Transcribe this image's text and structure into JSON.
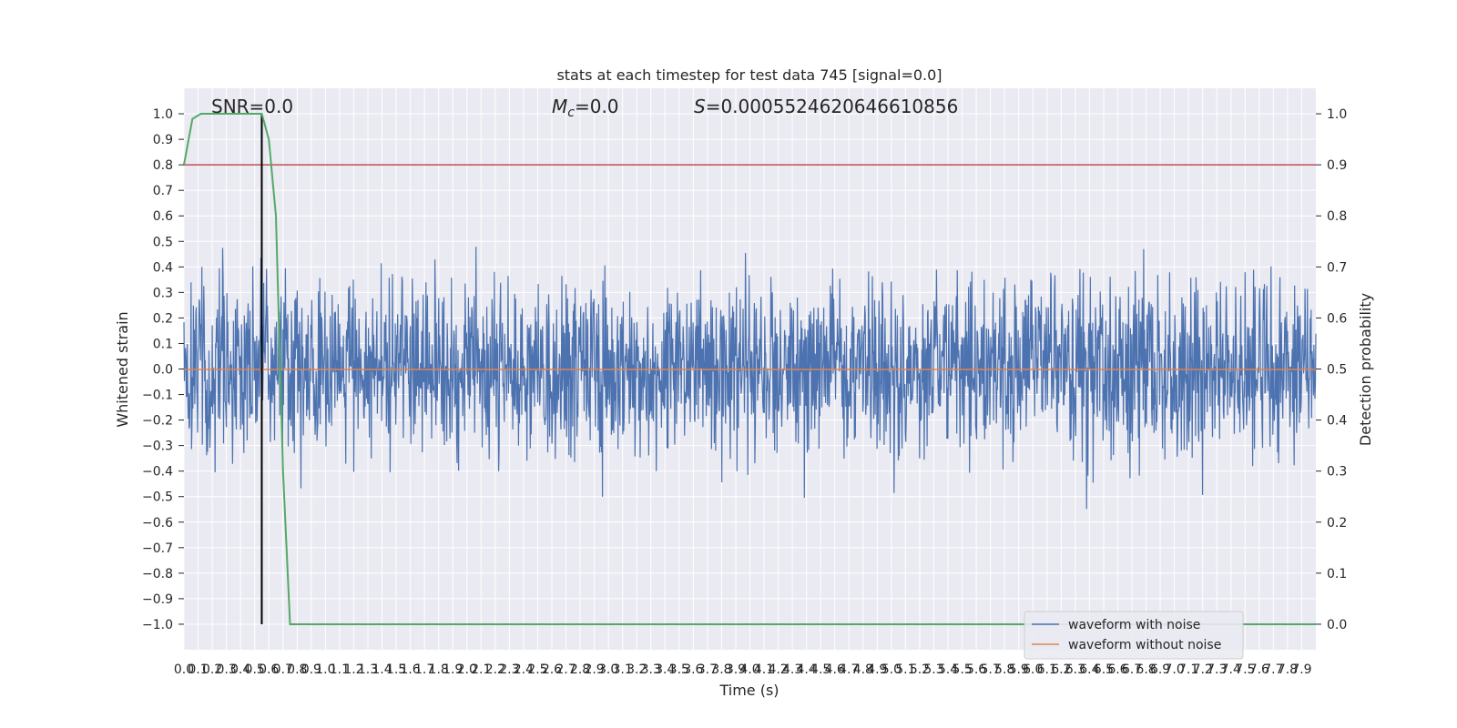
{
  "chart_data": {
    "type": "line",
    "title": "stats at each timestep for test data 745 [signal=0.0]",
    "xlabel": "Time (s)",
    "ylabel_left": "Whitened strain",
    "ylabel_right": "Detection probability",
    "xlim": [
      0.0,
      8.0
    ],
    "ylim_left": [
      -1.1,
      1.1
    ],
    "ylim_right": [
      -0.05,
      1.05
    ],
    "x_ticks": [
      "0.0",
      "0.1",
      "0.2",
      "0.3",
      "0.4",
      "0.5",
      "0.6",
      "0.7",
      "0.8",
      "0.9",
      "1.0",
      "1.1",
      "1.2",
      "1.3",
      "1.4",
      "1.5",
      "1.6",
      "1.7",
      "1.8",
      "1.9",
      "2.0",
      "2.1",
      "2.2",
      "2.3",
      "2.4",
      "2.5",
      "2.6",
      "2.7",
      "2.8",
      "2.9",
      "3.0",
      "3.1",
      "3.2",
      "3.3",
      "3.4",
      "3.5",
      "3.6",
      "3.7",
      "3.8",
      "3.9",
      "4.0",
      "4.1",
      "4.2",
      "4.3",
      "4.4",
      "4.5",
      "4.6",
      "4.7",
      "4.8",
      "4.9",
      "5.0",
      "5.1",
      "5.2",
      "5.3",
      "5.4",
      "5.5",
      "5.6",
      "5.7",
      "5.8",
      "5.9",
      "6.0",
      "6.1",
      "6.2",
      "6.3",
      "6.4",
      "6.5",
      "6.6",
      "6.7",
      "6.8",
      "6.9",
      "7.0",
      "7.1",
      "7.2",
      "7.3",
      "7.4",
      "7.5",
      "7.6",
      "7.7",
      "7.8",
      "7.9"
    ],
    "y_ticks_left": [
      "1.0",
      "0.9",
      "0.8",
      "0.7",
      "0.6",
      "0.5",
      "0.4",
      "0.3",
      "0.2",
      "0.1",
      "0.0",
      "−0.1",
      "−0.2",
      "−0.3",
      "−0.4",
      "−0.5",
      "−0.6",
      "−0.7",
      "−0.8",
      "−0.9",
      "−1.0"
    ],
    "y_ticks_right": [
      "1.0",
      "0.9",
      "0.8",
      "0.7",
      "0.6",
      "0.5",
      "0.4",
      "0.3",
      "0.2",
      "0.1",
      "0.0"
    ],
    "annotations": {
      "snr": "SNR=0.0",
      "mc": "=0.0",
      "mc_symbol": "M",
      "mc_sub": "c",
      "s": "=0.0005524620646610856",
      "s_symbol": "S"
    },
    "grid": true,
    "legend_position": "lower-right",
    "series": [
      {
        "name": "waveform with noise",
        "color": "#4c72b0",
        "axis": "left",
        "description_values": "dense noise approx within [-1.0, 1.0]"
      },
      {
        "name": "waveform without noise",
        "color": "#dd8452",
        "axis": "left",
        "values_constant": 0.0
      },
      {
        "name": "",
        "color": "#55a868",
        "axis": "right",
        "x": [
          0.0,
          0.06,
          0.12,
          0.2,
          0.3,
          0.4,
          0.55,
          0.6,
          0.65,
          0.7,
          0.75,
          8.0
        ],
        "values": [
          0.9,
          0.99,
          1.0,
          1.0,
          1.0,
          1.0,
          1.0,
          0.95,
          0.8,
          0.3,
          0.0,
          0.0
        ]
      }
    ],
    "threshold_line": {
      "value": 0.9,
      "axis": "right",
      "color": "#c44e52"
    },
    "vertical_line": {
      "x": 0.55,
      "color": "#000000"
    }
  }
}
